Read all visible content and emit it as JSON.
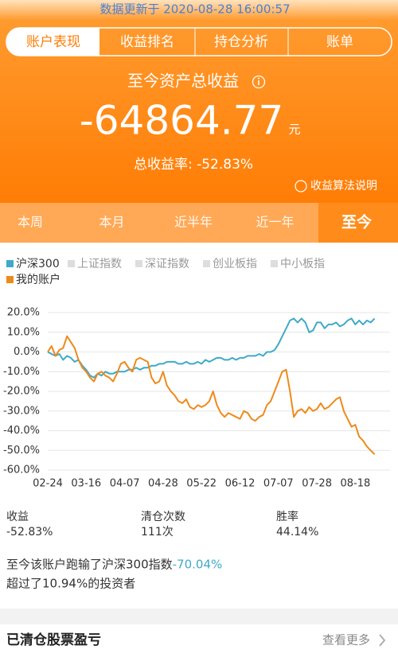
{
  "header": {
    "updated": "数据更新于 2020-08-28 16:00:57",
    "tabs": [
      "账户表现",
      "收益排名",
      "持仓分析",
      "账单"
    ],
    "total_label": "至今资产总收益",
    "total_value": "-64864.77",
    "total_unit": "元",
    "rate": "总收益率: -52.83%",
    "help": "收益算法说明"
  },
  "periods": {
    "items": [
      "本周",
      "本月",
      "近半年",
      "近一年",
      "至今"
    ],
    "selected": 4
  },
  "chart_data": {
    "type": "line",
    "inactive_legend": [
      "上证指数",
      "深证指数",
      "创业板指",
      "中小板指"
    ],
    "categories": [
      "02-24",
      null,
      null,
      null,
      null,
      null,
      null,
      null,
      null,
      null,
      "03-16",
      null,
      null,
      null,
      null,
      null,
      null,
      null,
      null,
      null,
      "04-07",
      null,
      null,
      null,
      null,
      null,
      null,
      null,
      null,
      null,
      "04-28",
      null,
      null,
      null,
      null,
      null,
      null,
      null,
      null,
      null,
      "05-22",
      null,
      null,
      null,
      null,
      null,
      null,
      null,
      null,
      null,
      "06-12",
      null,
      null,
      null,
      null,
      null,
      null,
      null,
      null,
      null,
      "07-07",
      null,
      null,
      null,
      null,
      null,
      null,
      null,
      null,
      null,
      "07-28",
      null,
      null,
      null,
      null,
      null,
      null,
      null,
      null,
      null,
      "08-18",
      null,
      null,
      null,
      null,
      null
    ],
    "series": [
      {
        "name": "沪深300",
        "color": "#3fa9c9",
        "values": [
          0,
          -1,
          -2,
          -1,
          -4,
          -2,
          -3,
          -5,
          -4,
          -7,
          -9,
          -12,
          -13,
          -11,
          -12,
          -10,
          -11,
          -11,
          -10,
          -10,
          -10,
          -9,
          -9,
          -8,
          -9,
          -8,
          -8,
          -7,
          -7,
          -6,
          -6,
          -5,
          -5,
          -5,
          -6,
          -6,
          -5,
          -6,
          -6,
          -5,
          -6,
          -4,
          -5,
          -4,
          -3,
          -3,
          -4,
          -4,
          -3,
          -4,
          -3,
          -3,
          -2,
          -2,
          -2,
          -1,
          -2,
          0,
          0,
          1,
          4,
          8,
          12,
          16,
          17,
          15,
          17,
          15,
          10,
          11,
          15,
          15,
          12,
          14,
          14,
          15,
          13,
          14,
          16,
          17,
          14,
          16,
          14,
          16,
          15,
          17
        ]
      },
      {
        "name": "我的账户",
        "color": "#ee8a1b",
        "values": [
          0,
          3,
          -2,
          1,
          2,
          8,
          5,
          2,
          -4,
          -8,
          -10,
          -13,
          -15,
          -11,
          -10,
          -12,
          -13,
          -15,
          -11,
          -6,
          -5,
          -8,
          -10,
          -4,
          -3,
          -4,
          -5,
          -13,
          -16,
          -15,
          -10,
          -17,
          -20,
          -22,
          -25,
          -26,
          -24,
          -28,
          -29,
          -27,
          -28,
          -27,
          -25,
          -20,
          -27,
          -31,
          -33,
          -31,
          -32,
          -33,
          -34,
          -30,
          -31,
          -34,
          -35,
          -33,
          -32,
          -27,
          -25,
          -20,
          -15,
          -10,
          -9,
          -20,
          -33,
          -30,
          -29,
          -31,
          -28,
          -30,
          -29,
          -26,
          -29,
          -28,
          -26,
          -24,
          -23,
          -30,
          -34,
          -38,
          -37,
          -43,
          -45,
          -48,
          -50,
          -52
        ]
      }
    ],
    "ylim": [
      -62,
      22
    ],
    "yticks": [
      {
        "value": 20,
        "label": "20.0%"
      },
      {
        "value": 10,
        "label": "10.0%"
      },
      {
        "value": 0,
        "label": "0.0%"
      },
      {
        "value": -10,
        "label": "-10.0%"
      },
      {
        "value": -20,
        "label": "-20.0%"
      },
      {
        "value": -30,
        "label": "-30.0%"
      },
      {
        "value": -40,
        "label": "-40.0%"
      },
      {
        "value": -50,
        "label": "-50.0%"
      },
      {
        "value": -60,
        "label": "-60.0%"
      }
    ],
    "grid": true
  },
  "stats": [
    {
      "label": "收益",
      "value": "-52.83%"
    },
    {
      "label": "清仓次数",
      "value": "111次"
    },
    {
      "label": "胜率",
      "value": "44.14%"
    }
  ],
  "summary": {
    "line1": "至今该账户跑输了沪深300指数",
    "diff": "-70.04%",
    "line2": "超过了10.94%的投资者"
  },
  "footer": {
    "title": "已清仓股票盈亏",
    "more": "查看更多"
  }
}
